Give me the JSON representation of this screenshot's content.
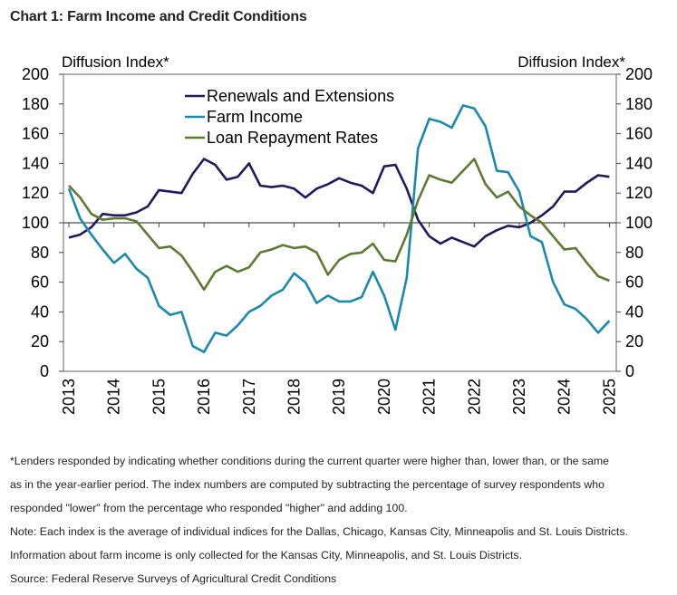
{
  "title": "Chart 1: Farm Income and Credit Conditions",
  "chart_data": {
    "type": "line",
    "ylabel_left": "Diffusion Index*",
    "ylabel_right": "Diffusion Index*",
    "ylim": [
      0,
      200
    ],
    "yticks": [
      0,
      20,
      40,
      60,
      80,
      100,
      120,
      140,
      160,
      180,
      200
    ],
    "xticks": [
      "2013",
      "2014",
      "2015",
      "2016",
      "2017",
      "2018",
      "2019",
      "2020",
      "2021",
      "2022",
      "2023",
      "2024",
      "2025"
    ],
    "x_frequency": "quarterly, 2013 Q1 to 2025 Q1",
    "legend_position": "top-left",
    "series": [
      {
        "name": "Renewals and Extensions",
        "color": "#1f1a5e",
        "values": [
          90,
          92,
          97,
          106,
          105,
          105,
          107,
          111,
          122,
          121,
          120,
          133,
          143,
          139,
          129,
          131,
          140,
          125,
          124,
          125,
          123,
          117,
          123,
          126,
          130,
          127,
          125,
          120,
          138,
          139,
          123,
          102,
          91,
          86,
          90,
          87,
          84,
          91,
          95,
          98,
          97,
          100,
          105,
          111,
          121,
          121,
          127,
          132,
          131
        ]
      },
      {
        "name": "Farm Income",
        "color": "#1a8aab",
        "values": [
          123,
          103,
          92,
          82,
          73,
          79,
          69,
          63,
          44,
          38,
          40,
          17,
          13,
          26,
          24,
          31,
          40,
          44,
          51,
          55,
          66,
          60,
          46,
          51,
          47,
          47,
          50,
          67,
          51,
          28,
          63,
          150,
          170,
          168,
          164,
          179,
          177,
          165,
          135,
          134,
          121,
          91,
          87,
          60,
          45,
          42,
          35,
          26,
          34
        ]
      },
      {
        "name": "Loan Repayment Rates",
        "color": "#5e7a32",
        "values": [
          125,
          117,
          106,
          102,
          103,
          103,
          101,
          92,
          83,
          84,
          78,
          67,
          55,
          67,
          71,
          67,
          70,
          80,
          82,
          85,
          83,
          84,
          80,
          65,
          75,
          79,
          80,
          86,
          75,
          74,
          92,
          115,
          132,
          129,
          127,
          135,
          143,
          126,
          117,
          121,
          111,
          105,
          100,
          91,
          82,
          83,
          73,
          64,
          61
        ]
      }
    ]
  },
  "notes": [
    "*Lenders responded by indicating whether conditions during the current quarter were higher than, lower than, or the same",
    "as in the year-earlier period. The index numbers are computed by subtracting the percentage of survey respondents who",
    "responded \"lower\" from the percentage who responded \"higher\" and adding 100.",
    "Note: Each index is the average of individual indices for the Dallas, Chicago, Kansas City, Minneapolis and St. Louis Districts.",
    "Information about farm income is only collected for the Kansas City, Minneapolis, and St. Louis Districts.",
    "Source: Federal Reserve Surveys of Agricultural Credit Conditions"
  ]
}
